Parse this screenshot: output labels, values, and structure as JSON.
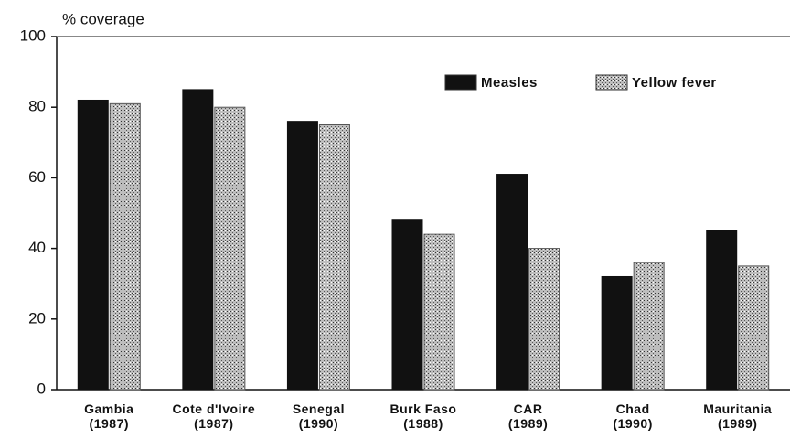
{
  "chart_data": {
    "type": "bar",
    "y_label": "% coverage",
    "categories": [
      "Gambia (1987)",
      "Cote d'Ivoire (1987)",
      "Senegal (1990)",
      "Burk Faso (1988)",
      "CAR (1989)",
      "Chad (1990)",
      "Mauritania (1989)"
    ],
    "series": [
      {
        "name": "Measles",
        "color": "#111111",
        "values": [
          82,
          85,
          76,
          48,
          61,
          32,
          45
        ]
      },
      {
        "name": "Yellow fever",
        "color": "#9a9a9a",
        "values": [
          81,
          80,
          75,
          44,
          40,
          36,
          35
        ]
      }
    ],
    "ylim": [
      0,
      100
    ],
    "yticks": [
      0,
      20,
      40,
      60,
      80,
      100
    ],
    "legend": "upper right"
  }
}
